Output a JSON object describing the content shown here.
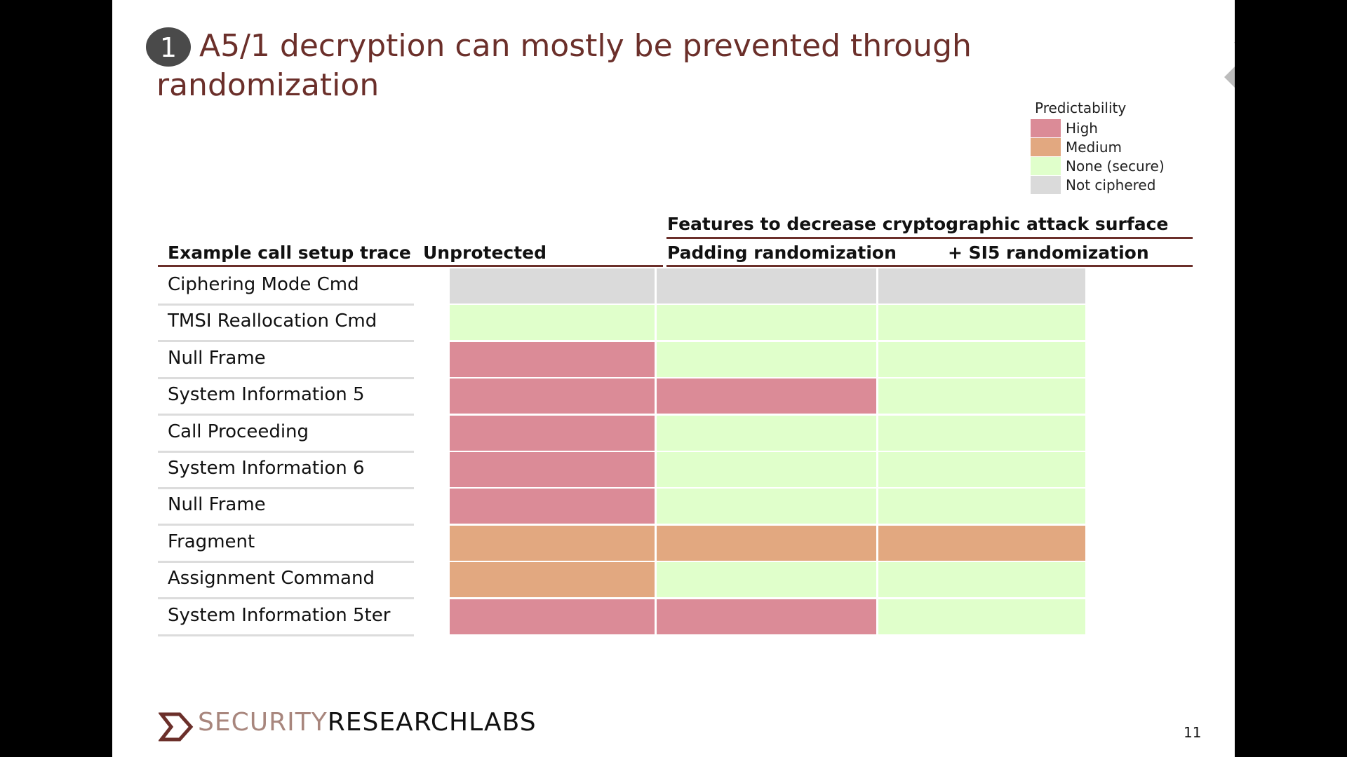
{
  "slide": {
    "badge_number": "1",
    "title_line1": "A5/1 decryption can mostly be prevented through",
    "title_line2": "randomization",
    "page_number": "11"
  },
  "legend": {
    "title": "Predictability",
    "items": [
      {
        "label": "High",
        "color": "#db8b97"
      },
      {
        "label": "Medium",
        "color": "#e2a880"
      },
      {
        "label": "None (secure)",
        "color": "#e0ffcb"
      },
      {
        "label": "Not ciphered",
        "color": "#dadada"
      }
    ]
  },
  "table": {
    "group_header": "Features to decrease cryptographic attack surface",
    "columns": [
      "Example call setup trace",
      "Unprotected",
      "Padding randomization",
      "+ SI5 randomization"
    ],
    "rows": [
      {
        "label": "Ciphering Mode Cmd",
        "values": [
          "Not ciphered",
          "Not ciphered",
          "Not ciphered"
        ]
      },
      {
        "label": "TMSI Reallocation Cmd",
        "values": [
          "None (secure)",
          "None (secure)",
          "None (secure)"
        ]
      },
      {
        "label": "Null Frame",
        "values": [
          "High",
          "None (secure)",
          "None (secure)"
        ]
      },
      {
        "label": "System Information 5",
        "values": [
          "High",
          "High",
          "None (secure)"
        ]
      },
      {
        "label": "Call Proceeding",
        "values": [
          "High",
          "None (secure)",
          "None (secure)"
        ]
      },
      {
        "label": "System Information 6",
        "values": [
          "High",
          "None (secure)",
          "None (secure)"
        ]
      },
      {
        "label": "Null Frame",
        "values": [
          "High",
          "None (secure)",
          "None (secure)"
        ]
      },
      {
        "label": "Fragment",
        "values": [
          "Medium",
          "Medium",
          "Medium"
        ]
      },
      {
        "label": "Assignment Command",
        "values": [
          "Medium",
          "None (secure)",
          "None (secure)"
        ]
      },
      {
        "label": "System Information 5ter",
        "values": [
          "High",
          "High",
          "None (secure)"
        ]
      }
    ]
  },
  "footer": {
    "brand_part1": "SECURITY",
    "brand_part2": "RESEARCHLABS"
  }
}
